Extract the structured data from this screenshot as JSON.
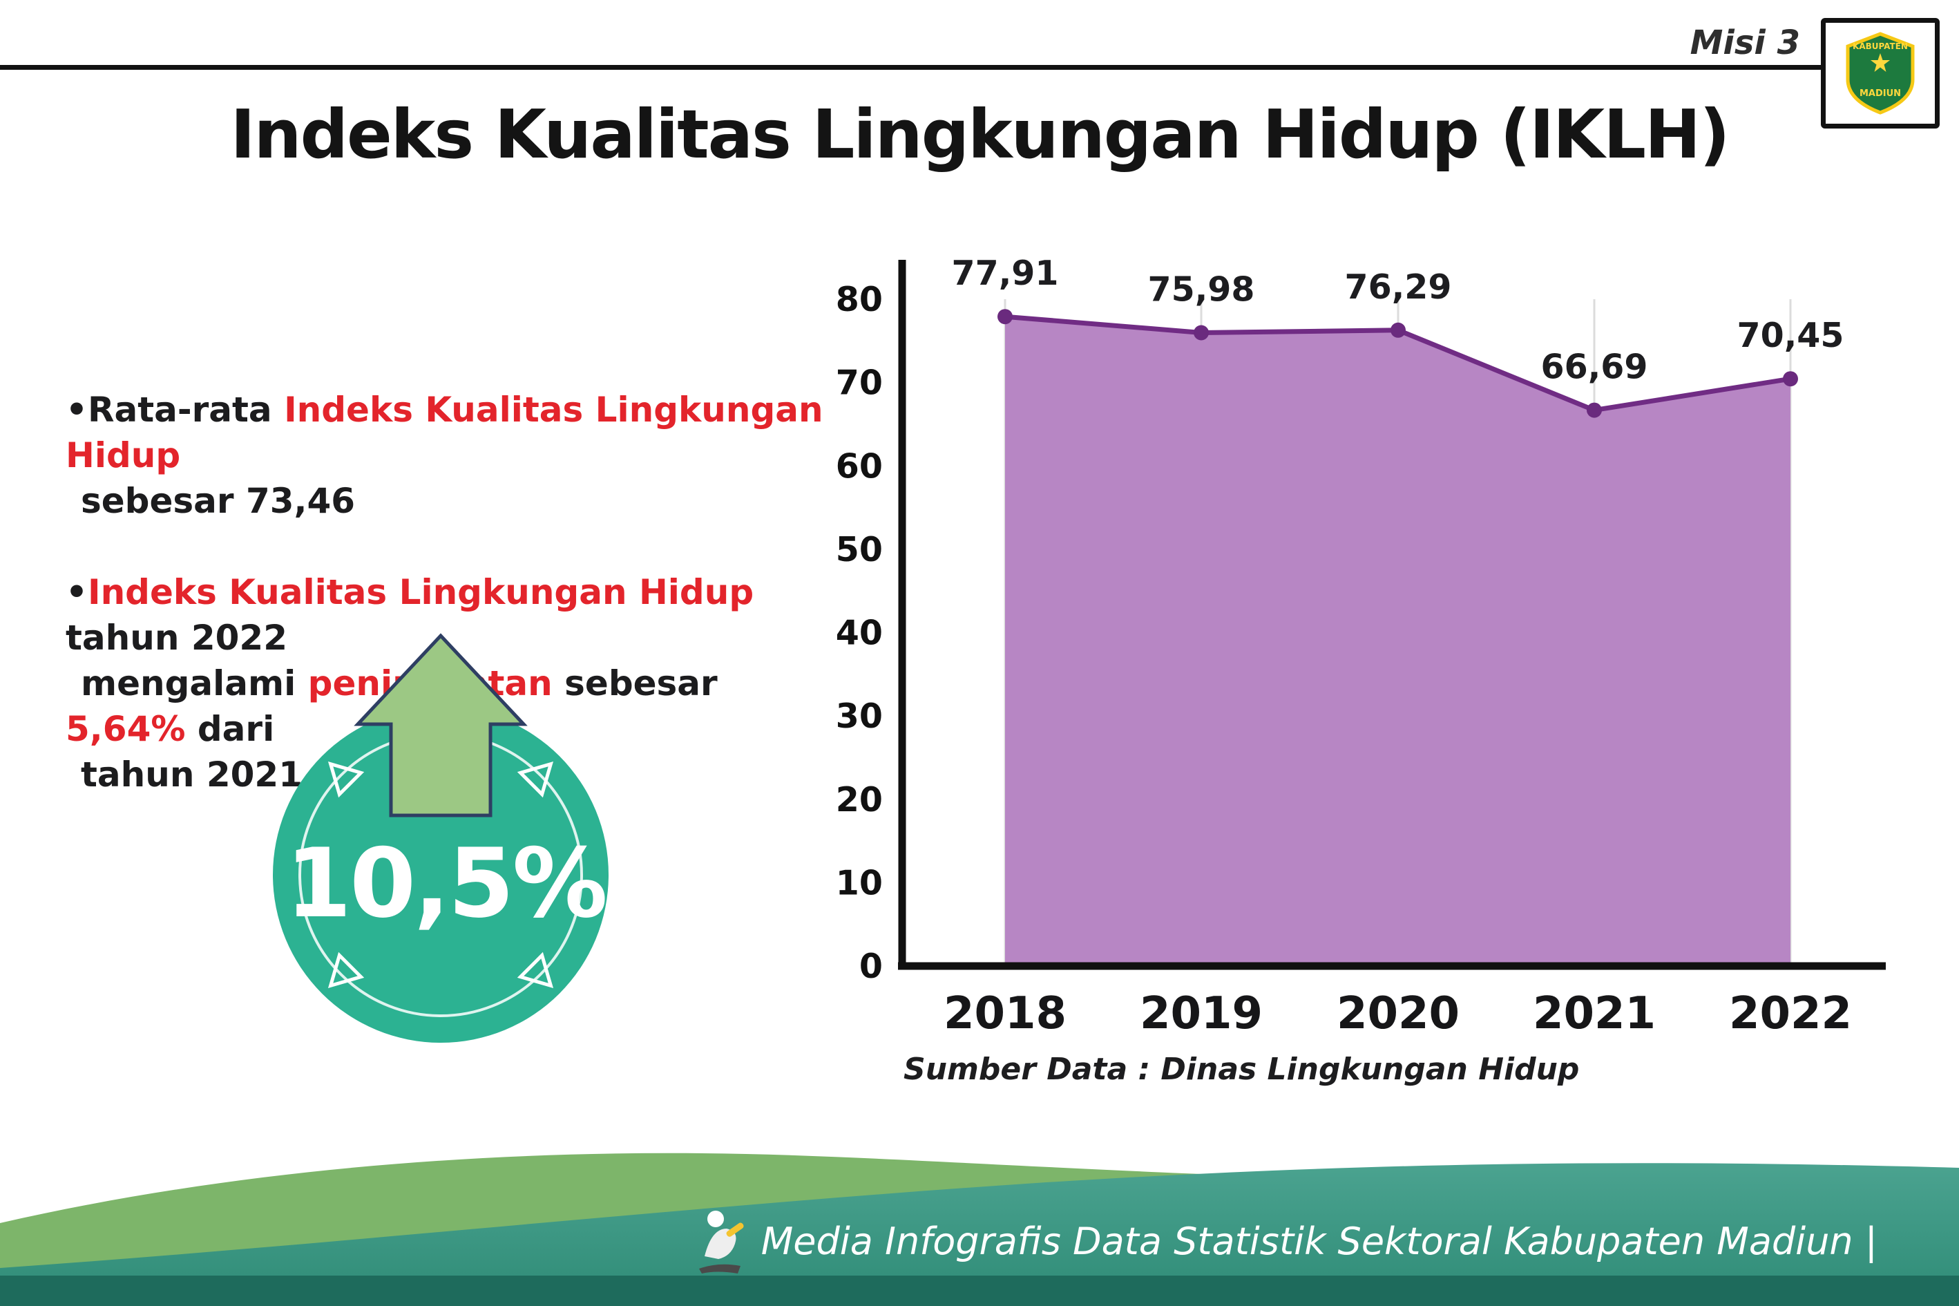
{
  "header": {
    "misi": "Misi 3",
    "title": "Indeks Kualitas Lingkungan Hidup (IKLH)",
    "logo": {
      "line1": "KABUPATEN",
      "line2": "MADIUN"
    }
  },
  "bullets": {
    "dot": "•",
    "b1s1": "Rata-rata ",
    "b1s2": "Indeks Kualitas Lingkungan Hidup",
    "b1s3": "sebesar 73,46",
    "b2s1": "Indeks Kualitas Lingkungan Hidup",
    "b2s2": " tahun 2022",
    "b2s3": "mengalami ",
    "b2s4": "peningkatan",
    "b2s5": " sebesar ",
    "b2s6": "5,64%",
    "b2s7": " dari",
    "b2s8": "tahun 2021"
  },
  "badge": {
    "value": "10,5%"
  },
  "chart_data": {
    "type": "area",
    "title": "Indeks Kualitas Lingkungan Hidup (IKLH)",
    "categories": [
      "2018",
      "2019",
      "2020",
      "2021",
      "2022"
    ],
    "values": [
      77.91,
      75.98,
      76.29,
      66.69,
      70.45
    ],
    "value_labels": [
      "77,91",
      "75,98",
      "76,29",
      "66,69",
      "70,45"
    ],
    "ylim": [
      0,
      80
    ],
    "yticks": [
      0,
      10,
      20,
      30,
      40,
      50,
      60,
      70,
      80
    ],
    "grid": "vertical-light",
    "legend": "none",
    "area_color": "#b786c4",
    "line_color": "#702c84",
    "point_color": "#6a2a7e",
    "source": "Sumber Data : Dinas Lingkungan Hidup"
  },
  "footer": {
    "text": "Media Infografis Data Statistik Sektoral Kabupaten Madiun |"
  },
  "colors": {
    "red_text": "#e3242b",
    "dark_text": "#1c1c1e",
    "badge_teal": "#2cb292",
    "arrow_green": "#9cc884",
    "arrow_outline": "#2e3f63",
    "footer_green": "#7db56a",
    "footer_teal_light": "#4ba390",
    "footer_teal_dark": "#2e8b76",
    "footer_band_dark": "#1e6b5c"
  }
}
